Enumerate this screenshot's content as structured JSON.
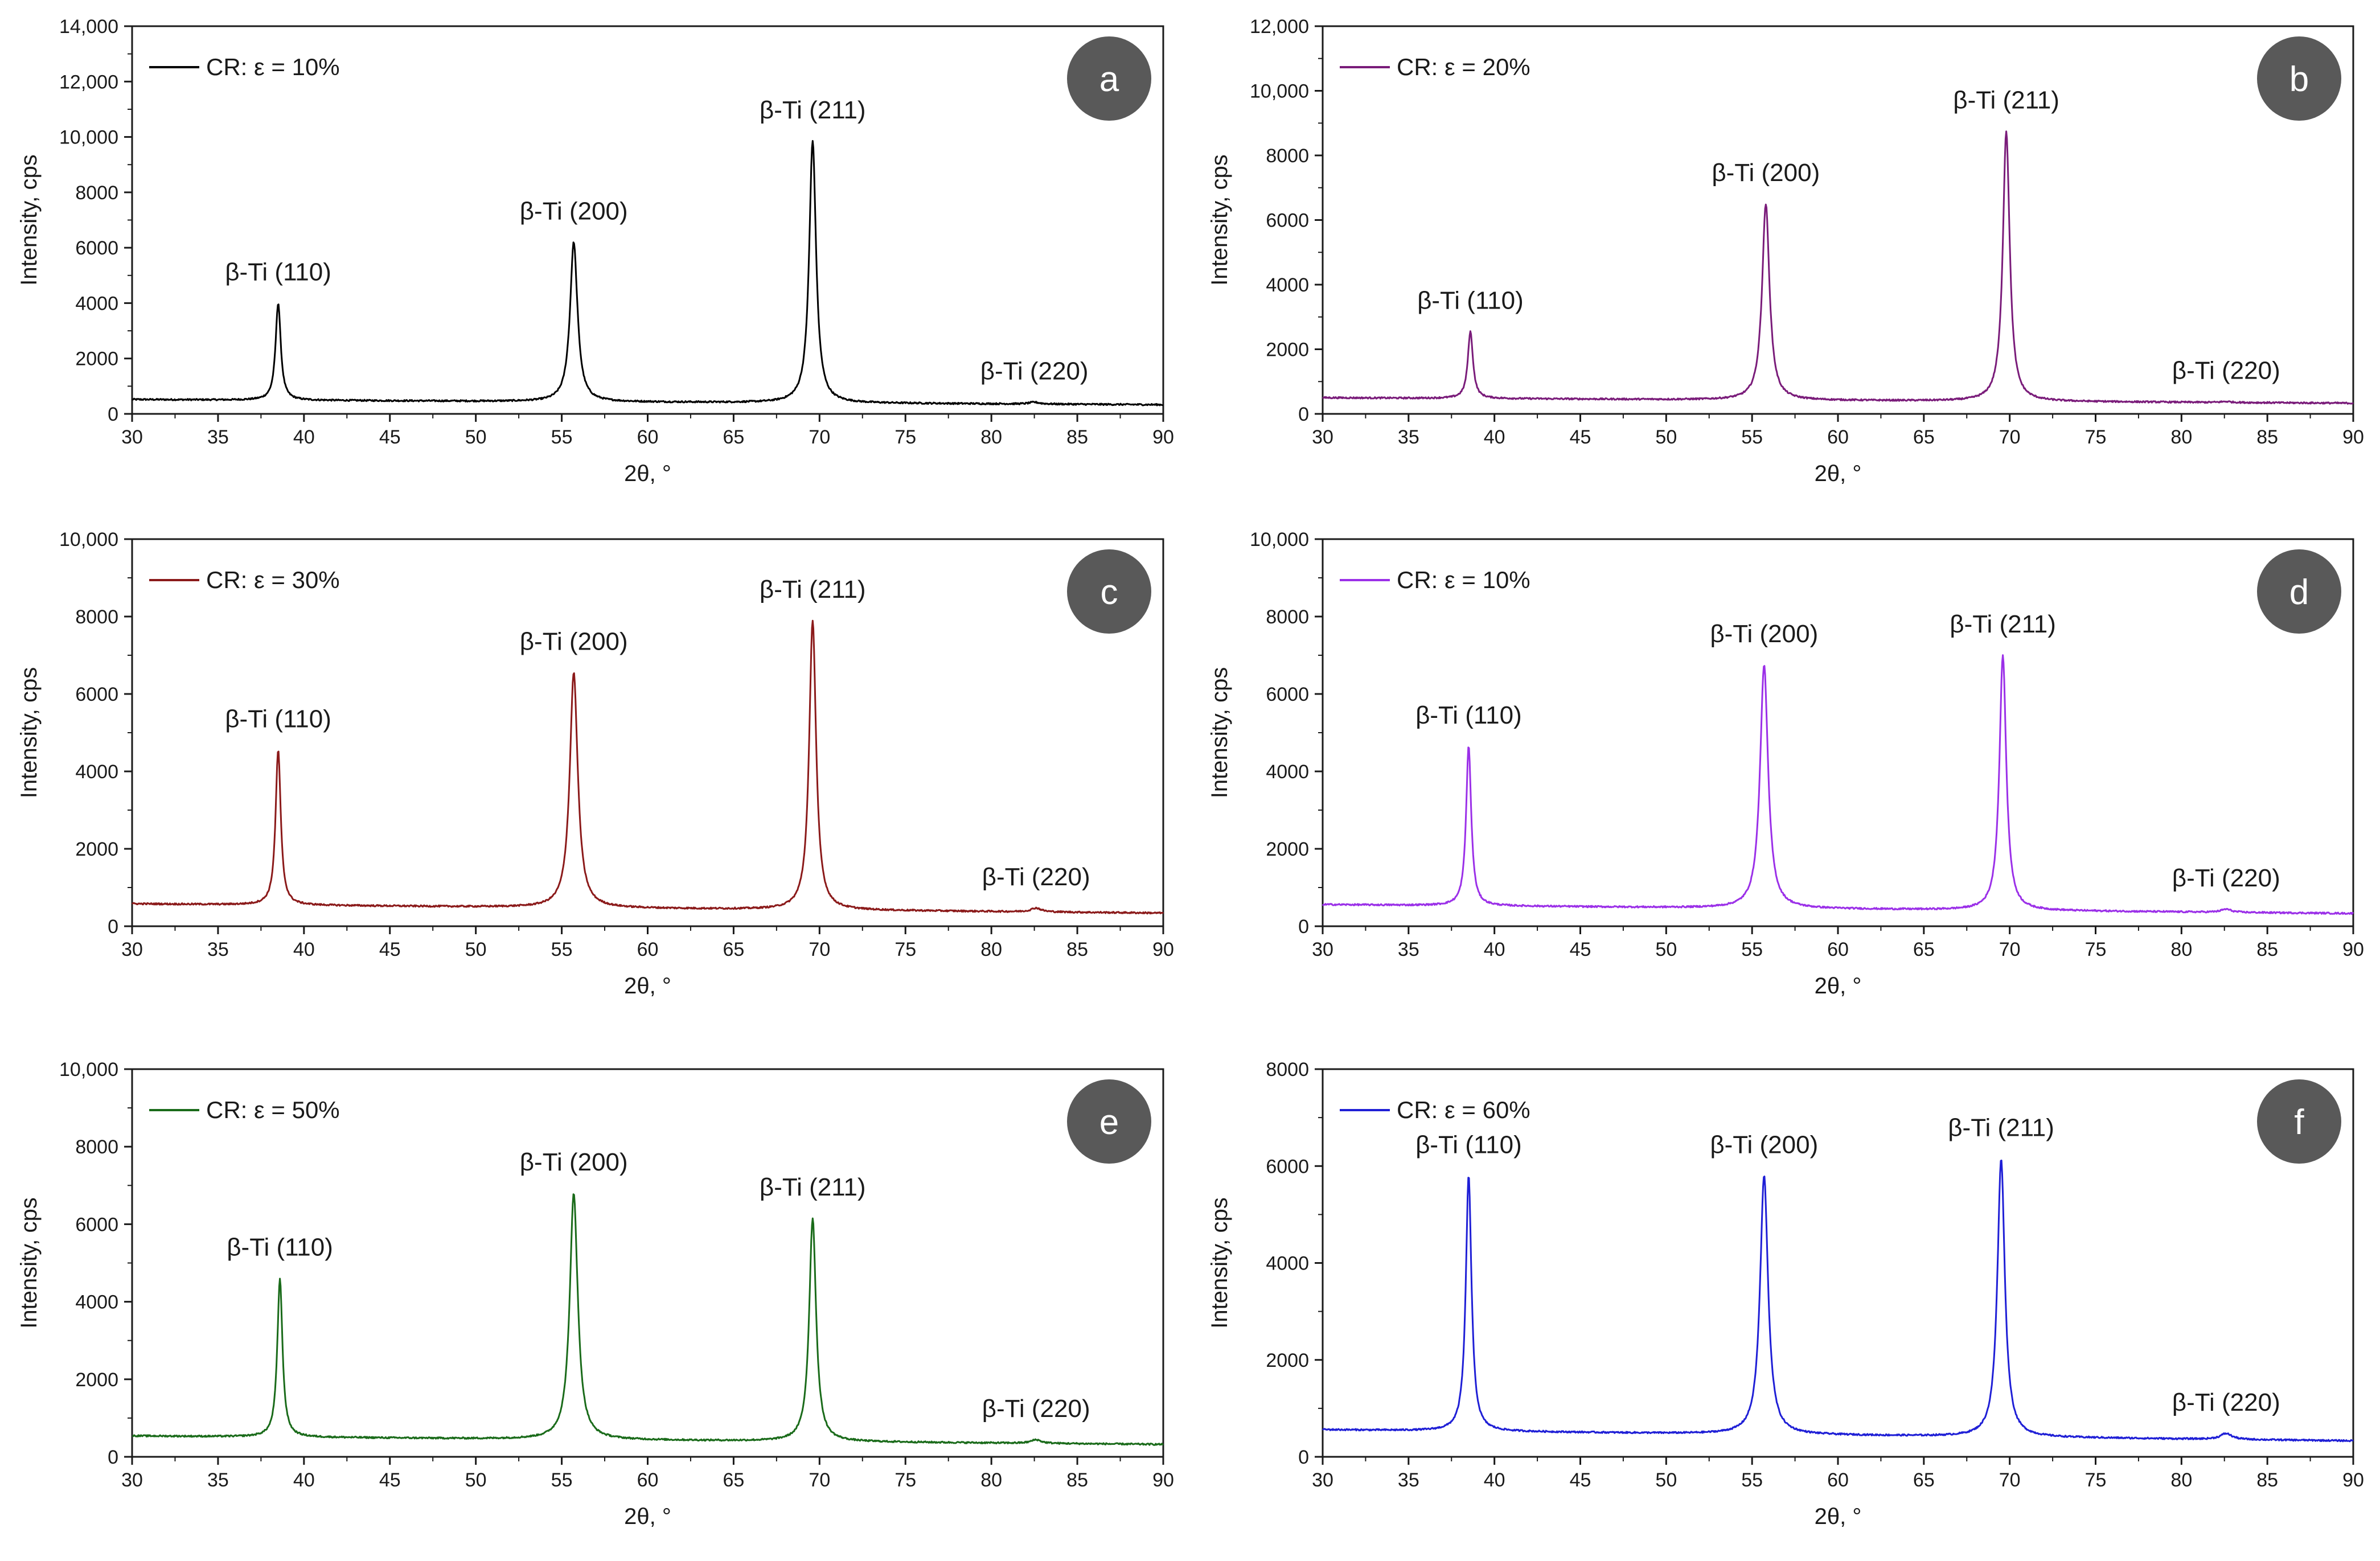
{
  "chart_data": [
    {
      "panel": "a",
      "type": "line",
      "title": "",
      "legend": "CR: ε = 10%",
      "color": "#000000",
      "xlabel": "2θ, °",
      "ylabel": "Intensity, cps",
      "xlim": [
        30,
        90
      ],
      "ylim": [
        0,
        14000
      ],
      "yticks": [
        0,
        2000,
        4000,
        6000,
        8000,
        10000,
        12000,
        14000
      ],
      "ytick_labels": [
        "0",
        "2000",
        "4000",
        "6000",
        "8000",
        "10,000",
        "12,000",
        "14,000"
      ],
      "xticks": [
        30,
        35,
        40,
        45,
        50,
        55,
        60,
        65,
        70,
        75,
        80,
        85,
        90
      ],
      "baseline_start": 520,
      "baseline_end": 330,
      "peaks": [
        {
          "x": 38.5,
          "y": 4000,
          "width": 0.18,
          "label": "β-Ti (110)"
        },
        {
          "x": 55.7,
          "y": 6200,
          "width": 0.26,
          "label": "β-Ti (200)"
        },
        {
          "x": 69.6,
          "y": 9850,
          "width": 0.24,
          "label": "β-Ti (211)"
        },
        {
          "x": 82.5,
          "y": 420,
          "width": 0.35,
          "label": "β-Ti (220)"
        }
      ]
    },
    {
      "panel": "b",
      "type": "line",
      "title": "",
      "legend": "CR: ε = 20%",
      "color": "#7a1c7a",
      "xlabel": "2θ, °",
      "ylabel": "Intensity, cps",
      "xlim": [
        30,
        90
      ],
      "ylim": [
        0,
        12000
      ],
      "yticks": [
        0,
        2000,
        4000,
        6000,
        8000,
        10000,
        12000
      ],
      "ytick_labels": [
        "0",
        "2000",
        "4000",
        "6000",
        "8000",
        "10,000",
        "12,000"
      ],
      "xticks": [
        30,
        35,
        40,
        45,
        50,
        55,
        60,
        65,
        70,
        75,
        80,
        85,
        90
      ],
      "baseline_start": 500,
      "baseline_end": 330,
      "peaks": [
        {
          "x": 38.6,
          "y": 2550,
          "width": 0.18,
          "label": "β-Ti (110)"
        },
        {
          "x": 55.8,
          "y": 6500,
          "width": 0.26,
          "label": "β-Ti (200)"
        },
        {
          "x": 69.8,
          "y": 8750,
          "width": 0.24,
          "label": "β-Ti (211)"
        },
        {
          "x": 82.6,
          "y": 380,
          "width": 0.35,
          "label": "β-Ti (220)"
        }
      ]
    },
    {
      "panel": "c",
      "type": "line",
      "title": "",
      "legend": "CR: ε = 30%",
      "color": "#8b1a1a",
      "xlabel": "2θ, °",
      "ylabel": "Intensity, cps",
      "xlim": [
        30,
        90
      ],
      "ylim": [
        0,
        10000
      ],
      "yticks": [
        0,
        2000,
        4000,
        6000,
        8000,
        10000
      ],
      "ytick_labels": [
        "0",
        "2000",
        "4000",
        "6000",
        "8000",
        "10,000"
      ],
      "xticks": [
        30,
        35,
        40,
        45,
        50,
        55,
        60,
        65,
        70,
        75,
        80,
        85,
        90
      ],
      "baseline_start": 580,
      "baseline_end": 340,
      "peaks": [
        {
          "x": 38.5,
          "y": 4550,
          "width": 0.18,
          "label": "β-Ti (110)"
        },
        {
          "x": 55.7,
          "y": 6550,
          "width": 0.28,
          "label": "β-Ti (200)"
        },
        {
          "x": 69.6,
          "y": 7900,
          "width": 0.24,
          "label": "β-Ti (211)"
        },
        {
          "x": 82.6,
          "y": 470,
          "width": 0.35,
          "label": "β-Ti (220)"
        }
      ]
    },
    {
      "panel": "d",
      "type": "line",
      "title": "",
      "legend": "CR: ε = 10%",
      "color": "#9b30e8",
      "xlabel": "2θ, °",
      "ylabel": "Intensity, cps",
      "xlim": [
        30,
        90
      ],
      "ylim": [
        0,
        10000
      ],
      "yticks": [
        0,
        2000,
        4000,
        6000,
        8000,
        10000
      ],
      "ytick_labels": [
        "0",
        "2000",
        "4000",
        "6000",
        "8000",
        "10,000"
      ],
      "xticks": [
        30,
        35,
        40,
        45,
        50,
        55,
        60,
        65,
        70,
        75,
        80,
        85,
        90
      ],
      "baseline_start": 560,
      "baseline_end": 330,
      "peaks": [
        {
          "x": 38.5,
          "y": 4650,
          "width": 0.18,
          "label": "β-Ti (110)"
        },
        {
          "x": 55.7,
          "y": 6750,
          "width": 0.28,
          "label": "β-Ti (200)"
        },
        {
          "x": 69.6,
          "y": 7000,
          "width": 0.24,
          "label": "β-Ti (211)"
        },
        {
          "x": 82.6,
          "y": 440,
          "width": 0.35,
          "label": "β-Ti (220)"
        }
      ]
    },
    {
      "panel": "e",
      "type": "line",
      "title": "",
      "legend": "CR: ε = 50%",
      "color": "#1a6b1a",
      "xlabel": "2θ, °",
      "ylabel": "Intensity, cps",
      "xlim": [
        30,
        90
      ],
      "ylim": [
        0,
        10000
      ],
      "yticks": [
        0,
        2000,
        4000,
        6000,
        8000,
        10000
      ],
      "ytick_labels": [
        "0",
        "2000",
        "4000",
        "6000",
        "8000",
        "10,000"
      ],
      "xticks": [
        30,
        35,
        40,
        45,
        50,
        55,
        60,
        65,
        70,
        75,
        80,
        85,
        90
      ],
      "baseline_start": 540,
      "baseline_end": 320,
      "peaks": [
        {
          "x": 38.6,
          "y": 4600,
          "width": 0.18,
          "label": "β-Ti (110)"
        },
        {
          "x": 55.7,
          "y": 6800,
          "width": 0.28,
          "label": "β-Ti (200)"
        },
        {
          "x": 69.6,
          "y": 6150,
          "width": 0.24,
          "label": "β-Ti (211)"
        },
        {
          "x": 82.6,
          "y": 440,
          "width": 0.35,
          "label": "β-Ti (220)"
        }
      ]
    },
    {
      "panel": "f",
      "type": "line",
      "title": "",
      "legend": "CR: ε = 60%",
      "color": "#1f1fd6",
      "xlabel": "2θ, °",
      "ylabel": "Intensity, cps",
      "xlim": [
        30,
        90
      ],
      "ylim": [
        0,
        8000
      ],
      "yticks": [
        0,
        2000,
        4000,
        6000,
        8000
      ],
      "ytick_labels": [
        "0",
        "2000",
        "4000",
        "6000",
        "8000"
      ],
      "xticks": [
        30,
        35,
        40,
        45,
        50,
        55,
        60,
        65,
        70,
        75,
        80,
        85,
        90
      ],
      "baseline_start": 560,
      "baseline_end": 330,
      "peaks": [
        {
          "x": 38.5,
          "y": 5800,
          "width": 0.2,
          "label": "β-Ti (110)"
        },
        {
          "x": 55.7,
          "y": 5800,
          "width": 0.28,
          "label": "β-Ti (200)"
        },
        {
          "x": 69.5,
          "y": 6150,
          "width": 0.26,
          "label": "β-Ti (211)"
        },
        {
          "x": 82.6,
          "y": 480,
          "width": 0.4,
          "label": "β-Ti (220)"
        }
      ]
    }
  ],
  "colors": {
    "badge_fill": "#595959",
    "axis": "#1a1a1a"
  }
}
